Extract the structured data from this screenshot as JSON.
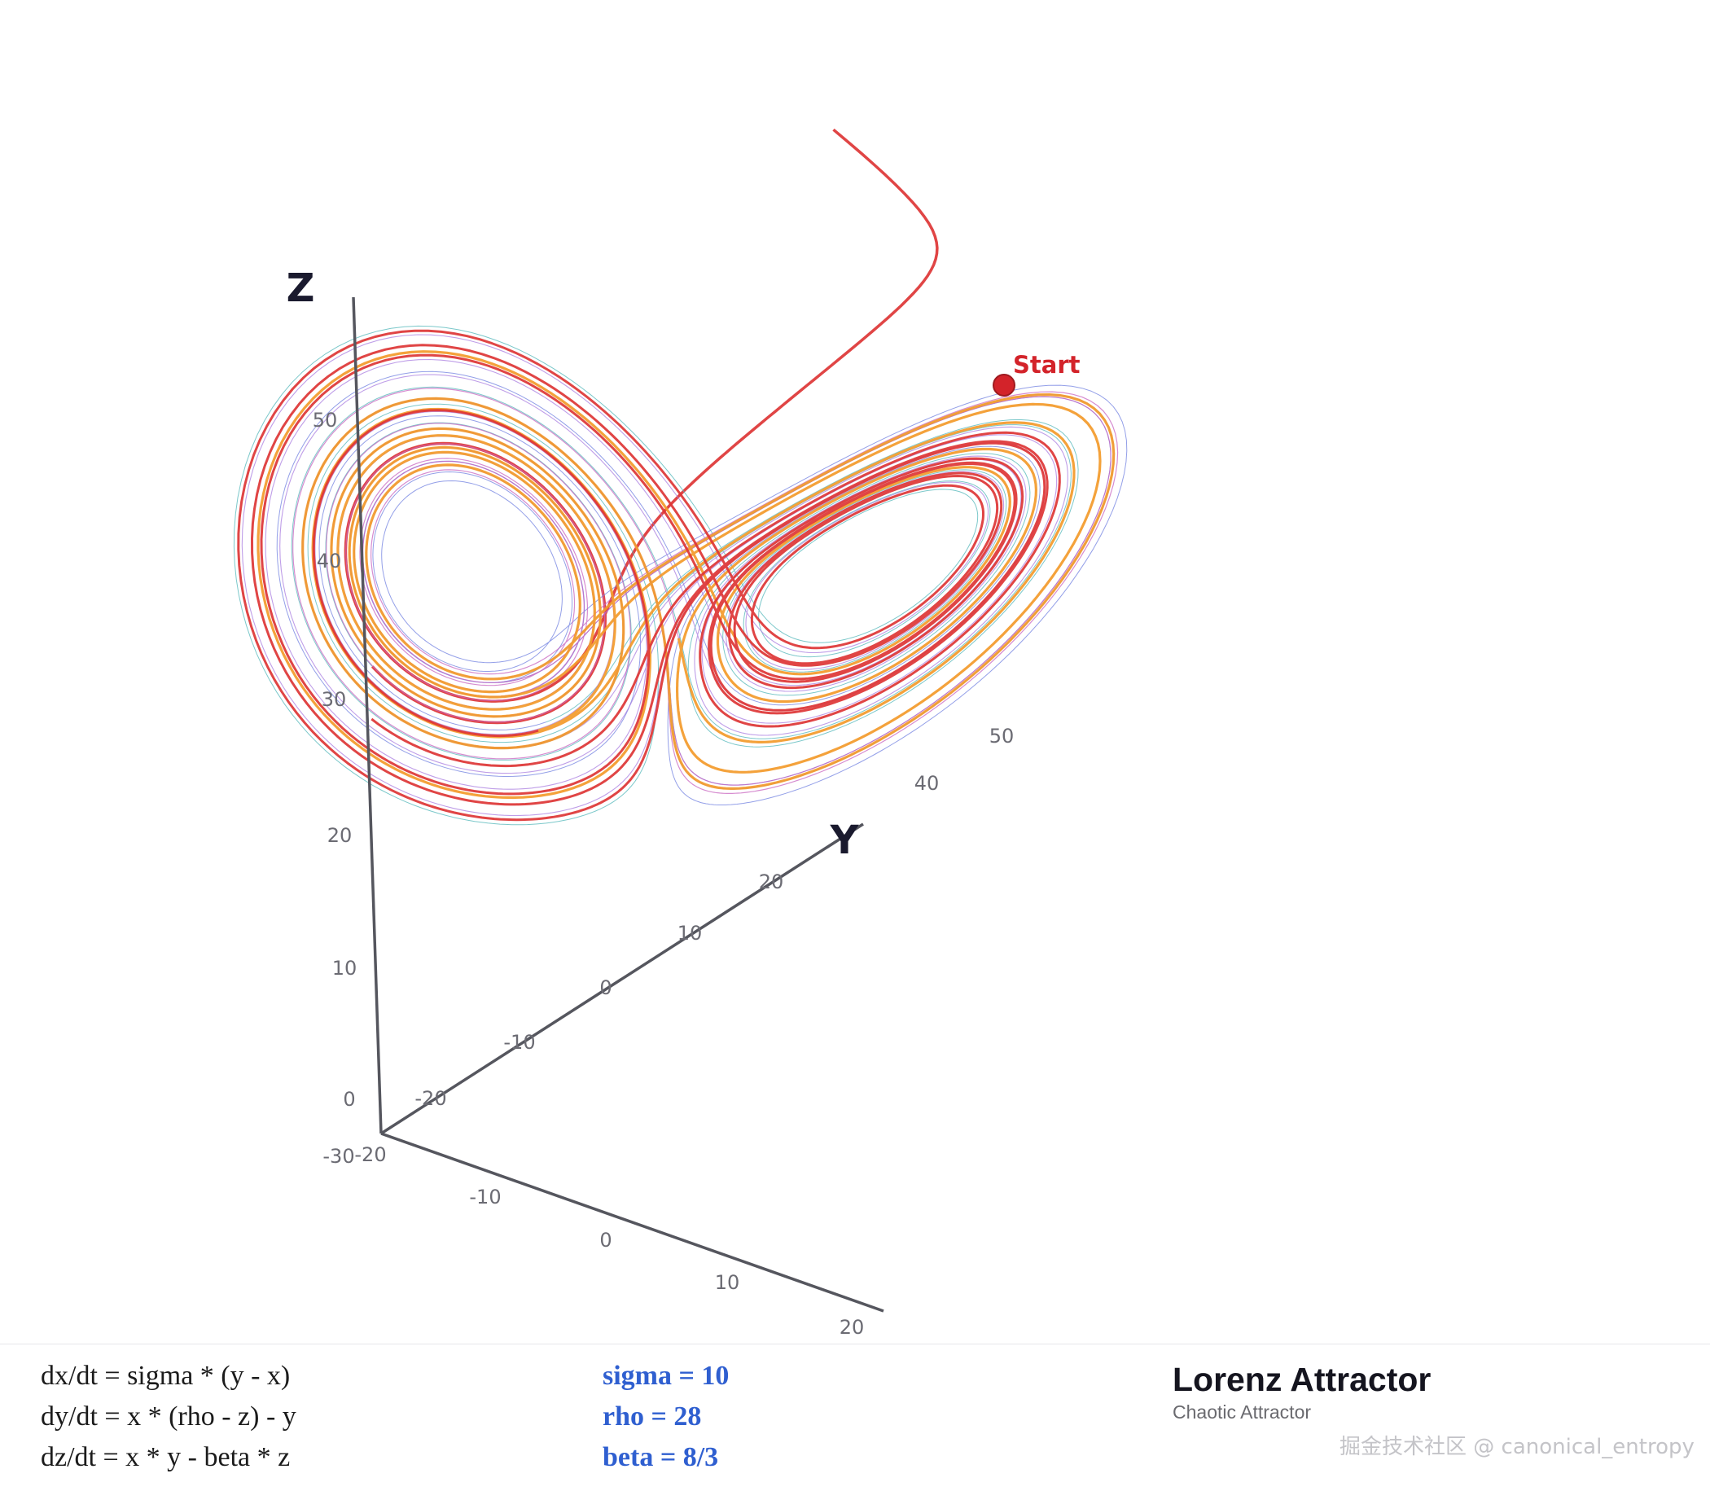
{
  "axes": {
    "z_title": "Z",
    "y_title": "Y",
    "z_ticks": [
      "50",
      "40",
      "30",
      "20",
      "10",
      "0"
    ],
    "x_ticks": [
      "-30",
      "-20",
      "-10",
      "0",
      "10",
      "20"
    ],
    "y_ticks": [
      "-20",
      "-10",
      "0",
      "10",
      "20",
      "40",
      "50"
    ]
  },
  "start_marker": {
    "label": "Start",
    "color": "#d3232a"
  },
  "equations": {
    "dx": "dx/dt = sigma * (y - x)",
    "dy": "dy/dt = x * (rho - z) - y",
    "dz": "dz/dt = x * y - beta * z"
  },
  "params": {
    "sigma": "sigma = 10",
    "rho": "rho = 28",
    "beta": "beta = 8/3"
  },
  "title": "Lorenz Attractor",
  "subtitle": "Chaotic Attractor",
  "watermark": "掘金技术社区 @ canonical_entropy",
  "colors": {
    "axis": "#55565e",
    "cyan": "#4fb5b8",
    "blue": "#6f7fe0",
    "violet": "#a97ee0",
    "magenta": "#c865c0",
    "orange": "#f39a2a",
    "red": "#dd3535",
    "equation_param": "#2f5fd0"
  },
  "lorenz": {
    "sigma": 10,
    "rho": 28,
    "beta": 2.6667,
    "initial": [
      -2,
      22,
      53
    ]
  }
}
